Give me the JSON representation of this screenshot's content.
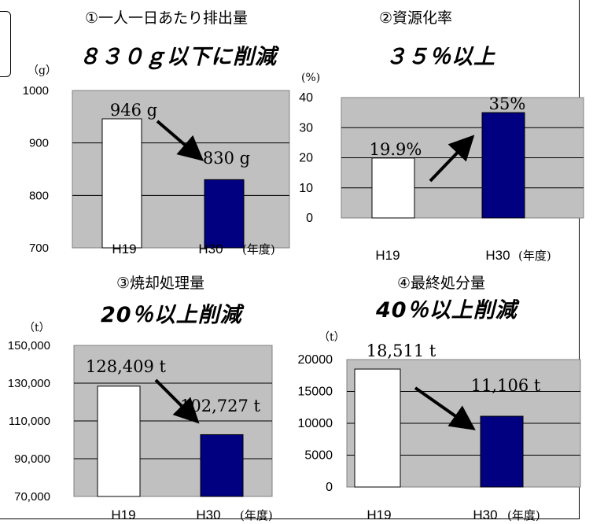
{
  "colors": {
    "plot_bg": "#c0c0c0",
    "plot_border": "#808080",
    "bar_h19": "#ffffff",
    "bar_h30": "#000080",
    "arrow": "#000000",
    "grid": "#000000"
  },
  "chart_data": [
    {
      "type": "bar",
      "heading": "①一人一日あたり排出量",
      "target": "８３０ｇ以下に削減",
      "unit_label": "（g）",
      "categories": [
        "H19",
        "H30"
      ],
      "xlabel_suffix": "(年度)",
      "values": [
        946,
        830
      ],
      "value_labels": [
        "946 g",
        "830 g"
      ],
      "y_ticks": [
        "1000",
        "900",
        "800",
        "700"
      ],
      "ylim": [
        700,
        1000
      ],
      "arrow": "down",
      "grid": true
    },
    {
      "type": "bar",
      "heading": "②資源化率",
      "target": "３５％以上",
      "unit_label": "(%)",
      "categories": [
        "H19",
        "H30"
      ],
      "xlabel_suffix": "(年度)",
      "values": [
        19.9,
        35
      ],
      "value_labels": [
        "19.9%",
        "35%"
      ],
      "y_ticks": [
        "40",
        "30",
        "20",
        "10",
        "0"
      ],
      "ylim": [
        0,
        40
      ],
      "arrow": "up",
      "grid": true
    },
    {
      "type": "bar",
      "heading": "③焼却処理量",
      "target": "20％以上削減",
      "unit_label": "（t）",
      "categories": [
        "H19",
        "H30"
      ],
      "xlabel_suffix": "(年度)",
      "values": [
        128409,
        102727
      ],
      "value_labels": [
        "128,409 t",
        "102,727 t"
      ],
      "y_ticks": [
        "150,000",
        "130,000",
        "110,000",
        "90,000",
        "70,000"
      ],
      "ylim": [
        70000,
        150000
      ],
      "arrow": "down",
      "grid": true
    },
    {
      "type": "bar",
      "heading": "④最終処分量",
      "target": "40％以上削減",
      "unit_label": "（t）",
      "categories": [
        "H19",
        "H30"
      ],
      "xlabel_suffix": "(年度)",
      "values": [
        18511,
        11106
      ],
      "value_labels": [
        "18,511 t",
        "11,106 t"
      ],
      "y_ticks": [
        "20000",
        "15000",
        "10000",
        "5000",
        "0"
      ],
      "ylim": [
        0,
        20000
      ],
      "arrow": "down",
      "grid": true
    }
  ]
}
